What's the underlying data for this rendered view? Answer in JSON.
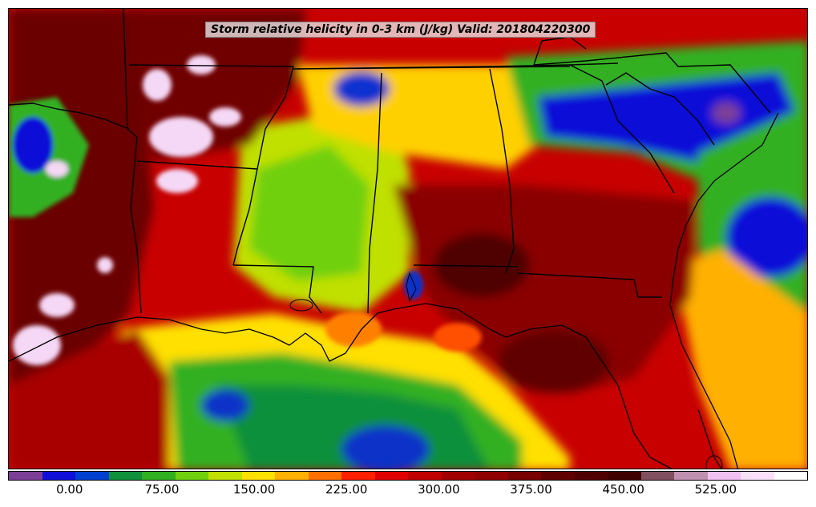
{
  "title": "Storm relative helicity in 0-3 km (J/kg) Valid: 201804220300",
  "colorbar": {
    "colors": [
      "#7b3f98",
      "#1010d8",
      "#0040d0",
      "#10903a",
      "#30b020",
      "#70d010",
      "#c0e000",
      "#ffe000",
      "#ffb000",
      "#ff7000",
      "#ff2000",
      "#e00000",
      "#c00000",
      "#a00000",
      "#900000",
      "#780000",
      "#600000",
      "#500000",
      "#400000",
      "#805060",
      "#c090b0",
      "#f0c0f0",
      "#f8e0f8",
      "#ffffff"
    ],
    "tick_values": [
      0.0,
      75.0,
      150.0,
      225.0,
      300.0,
      375.0,
      450.0,
      525.0
    ],
    "tick_labels": [
      "0.00",
      "75.00",
      "150.00",
      "225.00",
      "300.00",
      "375.00",
      "450.00",
      "525.00"
    ],
    "range": [
      -50,
      600
    ]
  },
  "map": {
    "region": "Southeastern United States",
    "background_color": "#c00000"
  }
}
